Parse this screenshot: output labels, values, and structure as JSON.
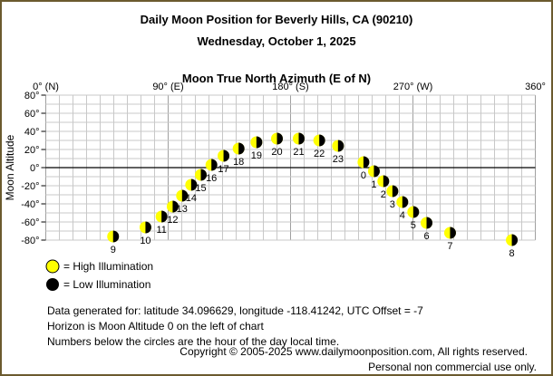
{
  "chart_data": {
    "type": "scatter",
    "title": "Daily Moon Position for Beverly Hills, CA (90210)",
    "subtitle": "Wednesday, October 1, 2025",
    "xlabel": "Moon True North Azimuth (E of N)",
    "ylabel": "Moon Altitude",
    "xlim": [
      0,
      360
    ],
    "ylim": [
      -80,
      80
    ],
    "x_ticks": [
      {
        "value": 0,
        "label": "0° (N)"
      },
      {
        "value": 90,
        "label": "90° (E)"
      },
      {
        "value": 180,
        "label": "180° (S)"
      },
      {
        "value": 270,
        "label": "270° (W)"
      },
      {
        "value": 360,
        "label": "360°"
      }
    ],
    "y_ticks": [
      {
        "value": 80,
        "label": "80°"
      },
      {
        "value": 60,
        "label": "60°"
      },
      {
        "value": 40,
        "label": "40°"
      },
      {
        "value": 20,
        "label": "20°"
      },
      {
        "value": 0,
        "label": "0°"
      },
      {
        "value": -20,
        "label": "-20°"
      },
      {
        "value": -40,
        "label": "-40°"
      },
      {
        "value": -60,
        "label": "-60°"
      },
      {
        "value": -80,
        "label": "-80°"
      }
    ],
    "grid": true,
    "points": [
      {
        "hour": "0",
        "azimuth": 233.6,
        "altitude": 6
      },
      {
        "hour": "1",
        "azimuth": 241.3,
        "altitude": -4
      },
      {
        "hour": "2",
        "azimuth": 248.2,
        "altitude": -15
      },
      {
        "hour": "3",
        "azimuth": 254.9,
        "altitude": -26
      },
      {
        "hour": "4",
        "azimuth": 262.2,
        "altitude": -38
      },
      {
        "hour": "5",
        "azimuth": 270.2,
        "altitude": -49
      },
      {
        "hour": "6",
        "azimuth": 280,
        "altitude": -61
      },
      {
        "hour": "7",
        "azimuth": 297.3,
        "altitude": -72
      },
      {
        "hour": "8",
        "azimuth": 342.7,
        "altitude": -80
      },
      {
        "hour": "9",
        "azimuth": 49.5,
        "altitude": -76
      },
      {
        "hour": "10",
        "azimuth": 73.3,
        "altitude": -66
      },
      {
        "hour": "11",
        "azimuth": 85.1,
        "altitude": -54
      },
      {
        "hour": "12",
        "azimuth": 93.3,
        "altitude": -43
      },
      {
        "hour": "13",
        "azimuth": 100.2,
        "altitude": -31
      },
      {
        "hour": "14",
        "azimuth": 106.9,
        "altitude": -19
      },
      {
        "hour": "15",
        "azimuth": 114,
        "altitude": -8
      },
      {
        "hour": "16",
        "azimuth": 121.8,
        "altitude": 3
      },
      {
        "hour": "17",
        "azimuth": 130.7,
        "altitude": 13
      },
      {
        "hour": "18",
        "azimuth": 141.8,
        "altitude": 21
      },
      {
        "hour": "19",
        "azimuth": 154.9,
        "altitude": 28
      },
      {
        "hour": "20",
        "azimuth": 170,
        "altitude": 32
      },
      {
        "hour": "21",
        "azimuth": 186,
        "altitude": 32
      },
      {
        "hour": "22",
        "azimuth": 201.1,
        "altitude": 30
      },
      {
        "hour": "23",
        "azimuth": 214.9,
        "altitude": 24
      }
    ],
    "legend": {
      "high": "= High Illumination",
      "low": "= Low Illumination"
    },
    "colors": {
      "high": "#FFFF00",
      "low": "#000000",
      "frame": "#6B5A2E",
      "grid": "#C8C8C8"
    }
  },
  "notes": [
    "Data generated for: latitude 34.096629, longitude -118.41242, UTC Offset = -7",
    "Horizon is Moon Altitude 0 on the left of chart",
    "Numbers below the circles are the hour of the day local time."
  ],
  "copyright": "Copyright © 2005-2025 www.dailymoonposition.com, All rights reserved.",
  "usage": "Personal non commercial use only."
}
